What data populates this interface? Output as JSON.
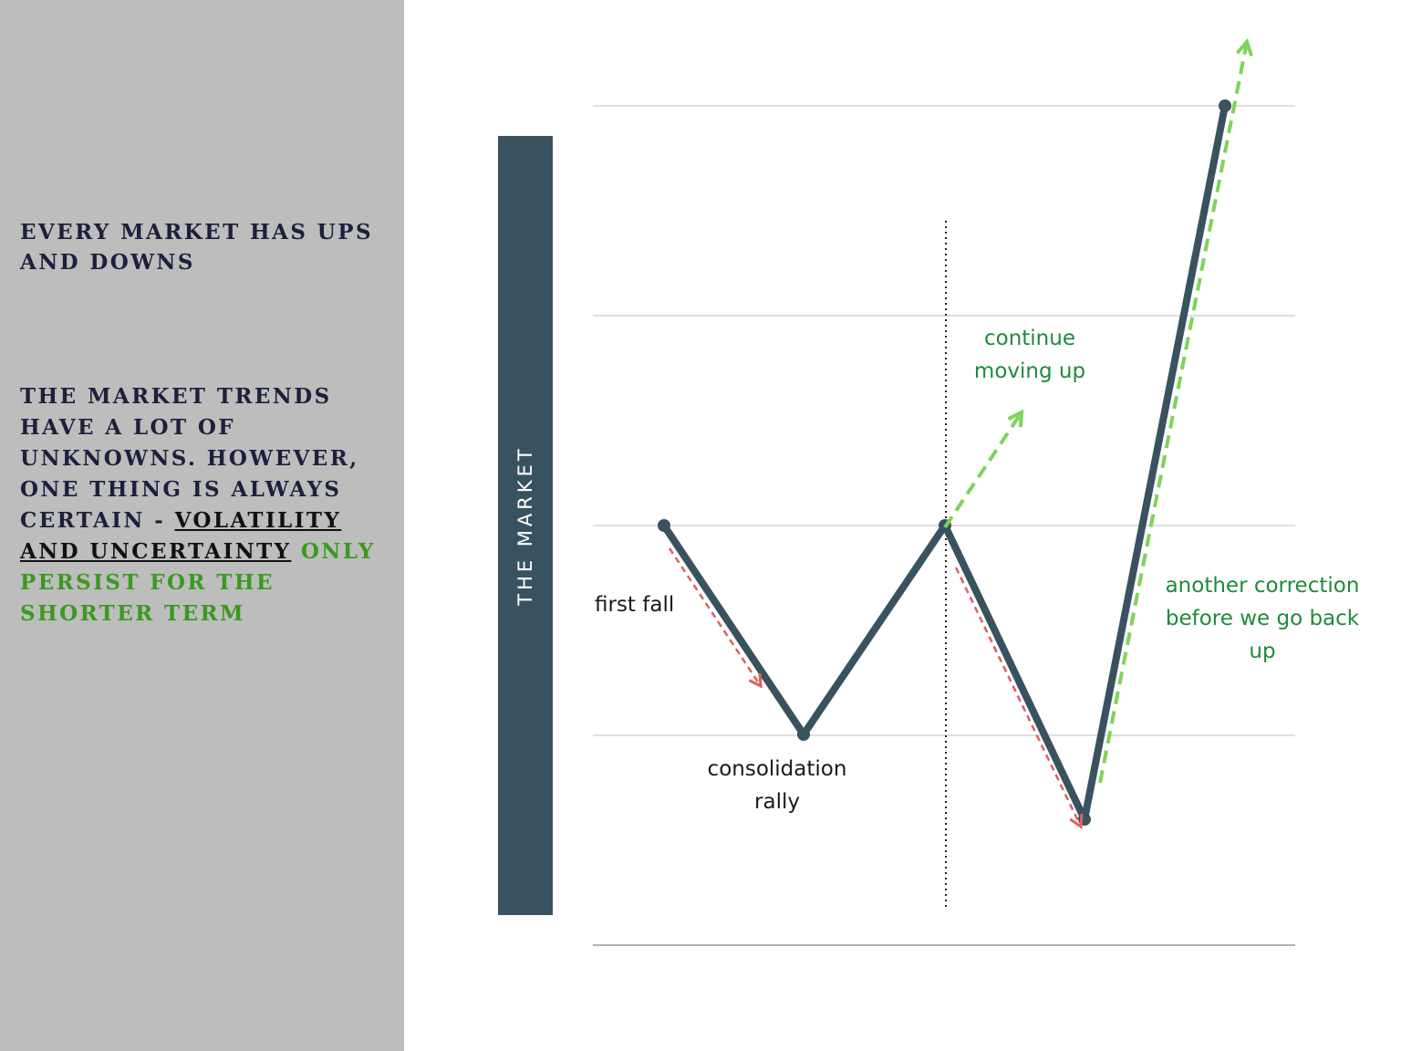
{
  "sidebar": {
    "heading1": "EVERY MARKET HAS UPS AND DOWNS",
    "heading2_part1": "THE MARKET TRENDS HAVE A LOT OF UNKNOWNS. HOWEVER, ONE THING IS ALWAYS CERTAIN - ",
    "heading2_underlined": "VOLATILITY AND UNCERTAINTY",
    "heading2_green": " ONLY PERSIST FOR THE SHORTER TERM"
  },
  "diagram": {
    "axis_label": "THE MARKET",
    "labels": {
      "first_fall": "first fall",
      "consolidation_line1": "consolidation",
      "consolidation_line2": "rally",
      "continue_line1": "continue",
      "continue_line2": "moving up",
      "correction_line1": "another correction",
      "correction_line2": "before we go back",
      "correction_line3": "up"
    },
    "colors": {
      "line": "#38535f",
      "down_arrow": "#e06060",
      "up_arrow": "#7ed45a",
      "grid": "#cfd6d8",
      "sidebar_bg": "#bdbdbd",
      "heading_text": "#1d1f3d",
      "accent_green": "#3a9a1f"
    }
  }
}
